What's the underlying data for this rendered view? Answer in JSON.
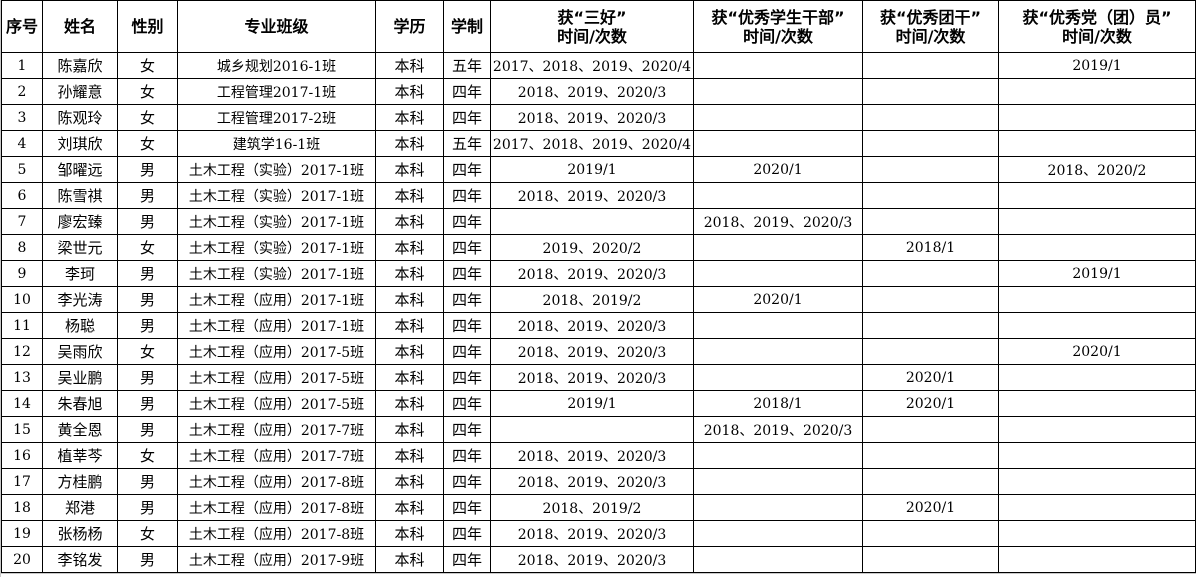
{
  "headers": [
    "序号",
    "姓名",
    "性别",
    "专业班级",
    "学历",
    "学制",
    "获“三好”\n时间/次数",
    "获“优秀学生干部”\n时间/次数",
    "获“优秀团干”\n时间/次数",
    "获“优秀党（团）员”\n时间/次数"
  ],
  "rows": [
    [
      "1",
      "陈嘉欣",
      "女",
      "城乡规划2016-1班",
      "本科",
      "五年",
      "2017、2018、2019、2020/4",
      "",
      "",
      "2019/1"
    ],
    [
      "2",
      "孙耀意",
      "女",
      "工程管理2017-1班",
      "本科",
      "四年",
      "2018、2019、2020/3",
      "",
      "",
      ""
    ],
    [
      "3",
      "陈观玲",
      "女",
      "工程管理2017-2班",
      "本科",
      "四年",
      "2018、2019、2020/3",
      "",
      "",
      ""
    ],
    [
      "4",
      "刘琪欣",
      "女",
      "建筑学16-1班",
      "本科",
      "五年",
      "2017、2018、2019、2020/4",
      "",
      "",
      ""
    ],
    [
      "5",
      "邹曜远",
      "男",
      "土木工程（实验）2017-1班",
      "本科",
      "四年",
      "2019/1",
      "2020/1",
      "",
      "2018、2020/2"
    ],
    [
      "6",
      "陈雪祺",
      "男",
      "土木工程（实验）2017-1班",
      "本科",
      "四年",
      "2018、2019、2020/3",
      "",
      "",
      ""
    ],
    [
      "7",
      "廖宏臻",
      "男",
      "土木工程（实验）2017-1班",
      "本科",
      "四年",
      "",
      "2018、2019、2020/3",
      "",
      ""
    ],
    [
      "8",
      "梁世元",
      "女",
      "土木工程（实验）2017-1班",
      "本科",
      "四年",
      "2019、2020/2",
      "",
      "2018/1",
      ""
    ],
    [
      "9",
      "李珂",
      "男",
      "土木工程（实验）2017-1班",
      "本科",
      "四年",
      "2018、2019、2020/3",
      "",
      "",
      "2019/1"
    ],
    [
      "10",
      "李光涛",
      "男",
      "土木工程（应用）2017-1班",
      "本科",
      "四年",
      "2018、2019/2",
      "2020/1",
      "",
      ""
    ],
    [
      "11",
      "杨聪",
      "男",
      "土木工程（应用）2017-1班",
      "本科",
      "四年",
      "2018、2019、2020/3",
      "",
      "",
      ""
    ],
    [
      "12",
      "吴雨欣",
      "女",
      "土木工程（应用）2017-5班",
      "本科",
      "四年",
      "2018、2019、2020/3",
      "",
      "",
      "2020/1"
    ],
    [
      "13",
      "吴业鹏",
      "男",
      "土木工程（应用）2017-5班",
      "本科",
      "四年",
      "2018、2019、2020/3",
      "",
      "2020/1",
      ""
    ],
    [
      "14",
      "朱春旭",
      "男",
      "土木工程（应用）2017-5班",
      "本科",
      "四年",
      "2019/1",
      "2018/1",
      "2020/1",
      ""
    ],
    [
      "15",
      "黄全恩",
      "男",
      "土木工程（应用）2017-7班",
      "本科",
      "四年",
      "",
      "2018、2019、2020/3",
      "",
      ""
    ],
    [
      "16",
      "植莘芩",
      "女",
      "土木工程（应用）2017-7班",
      "本科",
      "四年",
      "2018、2019、2020/3",
      "",
      "",
      ""
    ],
    [
      "17",
      "方桂鹏",
      "男",
      "土木工程（应用）2017-8班",
      "本科",
      "四年",
      "2018、2019、2020/3",
      "",
      "",
      ""
    ],
    [
      "18",
      "郑港",
      "男",
      "土木工程（应用）2017-8班",
      "本科",
      "四年",
      "2018、2019/2",
      "",
      "2020/1",
      ""
    ],
    [
      "19",
      "张杨杨",
      "女",
      "土木工程（应用）2017-8班",
      "本科",
      "四年",
      "2018、2019、2020/3",
      "",
      "",
      ""
    ],
    [
      "20",
      "李铭发",
      "男",
      "土木工程（应用）2017-9班",
      "本科",
      "四年",
      "2018、2019、2020/3",
      "",
      "",
      ""
    ]
  ]
}
